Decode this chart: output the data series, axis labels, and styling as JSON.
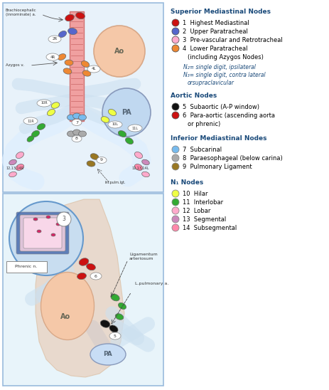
{
  "legend_title_superior": "Superior Mediastinal Nodes",
  "legend_title_aortic": "Aortic Nodes",
  "legend_title_inferior": "Inferior Mediastinal Nodes",
  "legend_title_n1": "N₁ Nodes",
  "superior_nodes": [
    {
      "num": "1",
      "label": "Highest Mediastinal",
      "color": "#cc1111"
    },
    {
      "num": "2",
      "label": "Upper Paratracheal",
      "color": "#5566cc"
    },
    {
      "num": "3",
      "label": "Pre-vascular and Retrotracheal",
      "color": "#ffaacc"
    },
    {
      "num": "4",
      "label": "Lower Paratracheal\n(including Azygos Nodes)",
      "color": "#ee8833"
    }
  ],
  "n2_note": "N₂= single digit, ipsilateral",
  "n3_note": "N₃= single digit, contra lateral\n        orsupraclavicular",
  "aortic_nodes": [
    {
      "num": "5",
      "label": "Subaortic (A-P window)",
      "color": "#111111"
    },
    {
      "num": "6",
      "label": "Para-aortic (ascending aorta\nor phrenic)",
      "color": "#cc1111"
    }
  ],
  "inferior_nodes": [
    {
      "num": "7",
      "label": "Subcarinal",
      "color": "#77bbee"
    },
    {
      "num": "8",
      "label": "Paraesophageal (below carina)",
      "color": "#aaaaaa"
    },
    {
      "num": "9",
      "label": "Pulmonary Ligament",
      "color": "#997722"
    }
  ],
  "n1_nodes": [
    {
      "num": "10",
      "label": "Hilar",
      "color": "#eeff44"
    },
    {
      "num": "11",
      "label": "Interlobar",
      "color": "#33aa33"
    },
    {
      "num": "12",
      "label": "Lobar",
      "color": "#ffaacc"
    },
    {
      "num": "13",
      "label": "Segmental",
      "color": "#cc88bb"
    },
    {
      "num": "14",
      "label": "Subsegmental",
      "color": "#ff88aa"
    }
  ],
  "bg_color": "#ffffff",
  "legend_title_color": "#1a4a7a",
  "note_color": "#1a4a7a",
  "border_color": "#99bbdd",
  "figsize": [
    4.64,
    5.48
  ],
  "dpi": 100
}
